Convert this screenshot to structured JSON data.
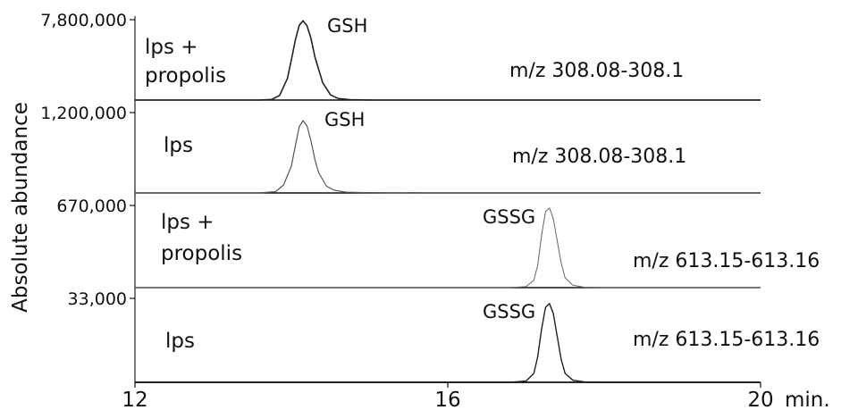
{
  "chart_data": {
    "type": "line",
    "ylabel": "Absolute abundance",
    "xlabel": "min.",
    "xlim": [
      12,
      20
    ],
    "x_ticks": [
      "12",
      "16",
      "20"
    ],
    "panels": [
      {
        "ymax_label": "7,800,000",
        "ymax": 7800000,
        "sample": [
          "lps +",
          "propolis"
        ],
        "mz": "m/z 308.08-308.1",
        "peak_label": "GSH",
        "series": {
          "x": [
            12.0,
            13.6,
            13.75,
            13.85,
            13.95,
            14.0,
            14.05,
            14.1,
            14.15,
            14.2,
            14.25,
            14.3,
            14.4,
            14.5,
            14.6,
            14.75,
            15.0,
            16.0,
            20.0
          ],
          "y": [
            0,
            0,
            60000,
            450000,
            2100000,
            3900000,
            5800000,
            7250000,
            7700000,
            7200000,
            6000000,
            4200000,
            1700000,
            500000,
            150000,
            40000,
            0,
            0,
            0
          ]
        }
      },
      {
        "ymax_label": "1,200,000",
        "ymax": 1200000,
        "sample": [
          "lps"
        ],
        "mz": "m/z 308.08-308.1",
        "peak_label": "GSH",
        "series": {
          "x": [
            12.0,
            13.6,
            13.8,
            13.9,
            14.0,
            14.05,
            14.1,
            14.15,
            14.2,
            14.25,
            14.3,
            14.35,
            14.45,
            14.55,
            14.7,
            14.9,
            15.2,
            15.4,
            15.5,
            15.55,
            15.65,
            16.0,
            20.0
          ],
          "y": [
            0,
            0,
            20000,
            120000,
            400000,
            700000,
            990000,
            1080000,
            1000000,
            780000,
            500000,
            300000,
            100000,
            40000,
            12000,
            5000,
            2000,
            0,
            3000,
            5000,
            0,
            0,
            0
          ]
        }
      },
      {
        "ymax_label": "670,000",
        "ymax": 670000,
        "sample": [
          "lps +",
          "propolis"
        ],
        "mz": "m/z 613.15-613.16",
        "peak_label": "GSSG",
        "series": {
          "x": [
            12.0,
            16.8,
            17.0,
            17.1,
            17.15,
            17.2,
            17.25,
            17.3,
            17.35,
            17.4,
            17.45,
            17.5,
            17.6,
            17.75,
            18.0,
            20.0
          ],
          "y": [
            0,
            0,
            8000,
            60000,
            180000,
            430000,
            620000,
            650000,
            560000,
            380000,
            200000,
            80000,
            20000,
            3000,
            0,
            0
          ]
        }
      },
      {
        "ymax_label": "33,000",
        "ymax": 33000,
        "sample": [
          "lps"
        ],
        "mz": "m/z 613.15-613.16",
        "peak_label": "GSSG",
        "series": {
          "x": [
            12.0,
            16.8,
            17.0,
            17.1,
            17.15,
            17.2,
            17.25,
            17.3,
            17.35,
            17.4,
            17.45,
            17.5,
            17.6,
            17.75,
            18.0,
            20.0
          ],
          "y": [
            0,
            0,
            500,
            3500,
            10000,
            21000,
            29500,
            31000,
            27000,
            18000,
            9000,
            3500,
            800,
            150,
            0,
            0
          ]
        }
      }
    ]
  }
}
